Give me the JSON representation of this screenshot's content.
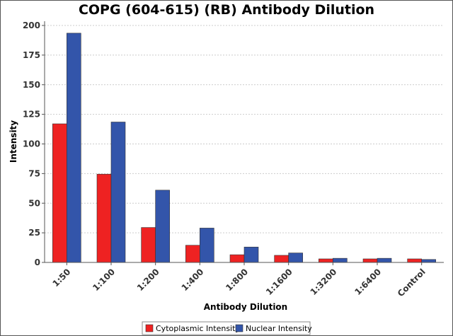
{
  "chart_data": {
    "type": "bar",
    "title": "COPG (604-615) (RB) Antibody Dilution",
    "xlabel": "Antibody Dilution",
    "ylabel": "Intensity",
    "ylim": [
      0,
      200
    ],
    "yticks": [
      0,
      25,
      50,
      75,
      100,
      125,
      150,
      175,
      200
    ],
    "grid": true,
    "legend_position": "bottom",
    "categories": [
      "1:50",
      "1:100",
      "1:200",
      "1:400",
      "1:800",
      "1:1600",
      "1:3200",
      "1:6400",
      "Control"
    ],
    "series": [
      {
        "name": "Cytoplasmic Intensity",
        "color": "#ee2222",
        "values": [
          117,
          74.5,
          29.5,
          14.5,
          6.5,
          6,
          3,
          3,
          3
        ]
      },
      {
        "name": "Nuclear Intensity",
        "color": "#3355aa",
        "values": [
          193.5,
          118.5,
          61,
          29,
          13,
          8,
          3.5,
          3.5,
          2.5
        ]
      }
    ]
  }
}
